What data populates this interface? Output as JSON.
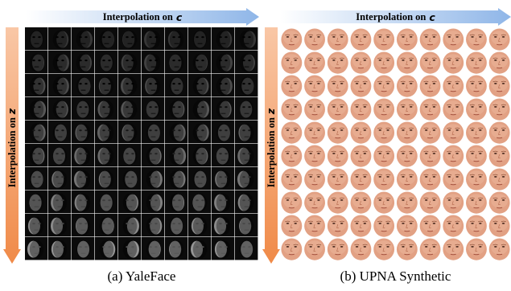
{
  "panels": [
    {
      "id": "a",
      "top_arrow": {
        "text": "Interpolation on",
        "var": "c"
      },
      "side_arrow": {
        "text": "Interpolation on",
        "var": "z"
      },
      "caption": "(a) YaleFace",
      "rows": 10,
      "cols": 10,
      "style": "grayscale"
    },
    {
      "id": "b",
      "top_arrow": {
        "text": "Interpolation on",
        "var": "c"
      },
      "side_arrow": {
        "text": "Interpolation on",
        "var": "z"
      },
      "caption": "(b) UPNA Synthetic",
      "rows": 10,
      "cols": 10,
      "style": "skin"
    }
  ],
  "colors": {
    "top_arrow_start": "#ffffff",
    "top_arrow_end": "#8fb6e8",
    "side_arrow_start": "#f9c7a6",
    "side_arrow_end": "#f08a48",
    "skin": "#e2a184",
    "gray_dark": "#1a1a1a"
  }
}
